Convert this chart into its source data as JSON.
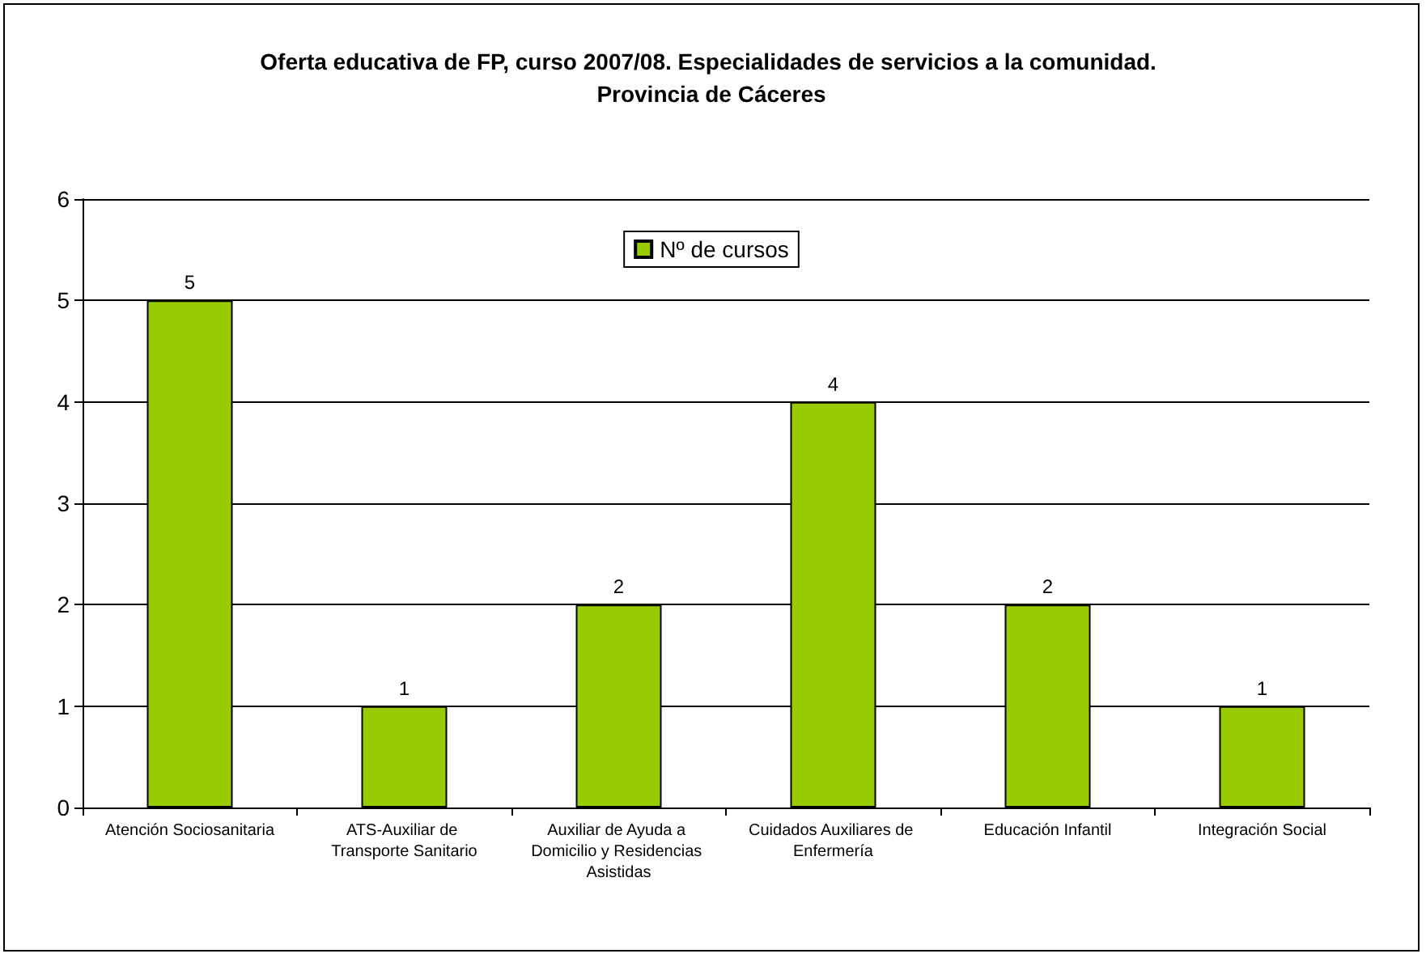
{
  "chart_data": {
    "type": "bar",
    "title": "Oferta educativa de FP, curso 2007/08. Especialidades de servicios a la comunidad. Provincia de Cáceres",
    "categories": [
      "Atención Sociosanitaria",
      "ATS-Auxiliar de Transporte Sanitario",
      "Auxiliar de Ayuda a Domicilio y Residencias Asistidas",
      "Cuidados Auxiliares de Enfermería",
      "Educación Infantil",
      "Integración Social"
    ],
    "series": [
      {
        "name": "Nº de cursos",
        "color": "#99cc00",
        "values": [
          5,
          1,
          2,
          4,
          2,
          1
        ]
      }
    ],
    "ylim": [
      0,
      6
    ],
    "yticks": [
      0,
      1,
      2,
      3,
      4,
      5,
      6
    ],
    "grid": "y",
    "legend": "top",
    "data_labels": true
  }
}
